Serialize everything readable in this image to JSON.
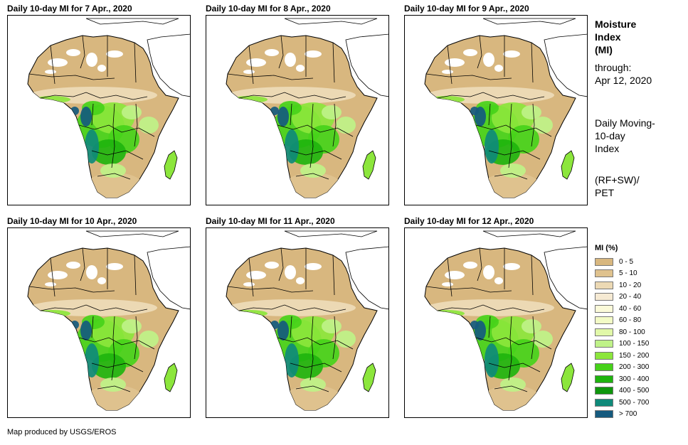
{
  "panels": [
    {
      "title": "Daily 10-day MI for 7 Apr., 2020"
    },
    {
      "title": "Daily 10-day MI for 8 Apr., 2020"
    },
    {
      "title": "Daily 10-day MI for 9 Apr., 2020"
    },
    {
      "title": "Daily 10-day MI for 10 Apr., 2020"
    },
    {
      "title": "Daily 10-day MI for 11 Apr., 2020"
    },
    {
      "title": "Daily 10-day MI for 12 Apr., 2020"
    }
  ],
  "sidebar": {
    "title_line1": "Moisture",
    "title_line2": "Index",
    "title_line3": "(MI)",
    "through_label": "through:",
    "through_date": "Apr 12, 2020",
    "desc_line1": "Daily Moving-",
    "desc_line2": "10-day",
    "desc_line3": "Index",
    "formula_line1": "(RF+SW)/",
    "formula_line2": "PET"
  },
  "legend": {
    "title": "MI (%)",
    "items": [
      {
        "label": "0 - 5",
        "color": "#d8b77f"
      },
      {
        "label": "5 - 10",
        "color": "#dfc28e"
      },
      {
        "label": "10 - 20",
        "color": "#ecd9b4"
      },
      {
        "label": "20 - 40",
        "color": "#f6ead3"
      },
      {
        "label": "40 - 60",
        "color": "#fbfad9"
      },
      {
        "label": "60 - 80",
        "color": "#f3fbc6"
      },
      {
        "label": "80 - 100",
        "color": "#e1f8a8"
      },
      {
        "label": "100 - 150",
        "color": "#bff288"
      },
      {
        "label": "150 - 200",
        "color": "#8ce63c"
      },
      {
        "label": "200 - 300",
        "color": "#46d21a"
      },
      {
        "label": "300 - 400",
        "color": "#1fb40e"
      },
      {
        "label": "400 - 500",
        "color": "#0f960c"
      },
      {
        "label": "500 - 700",
        "color": "#0f8a7a"
      },
      {
        "label": "> 700",
        "color": "#155a7e"
      }
    ]
  },
  "footer": {
    "credit": "Map produced by USGS/EROS"
  }
}
